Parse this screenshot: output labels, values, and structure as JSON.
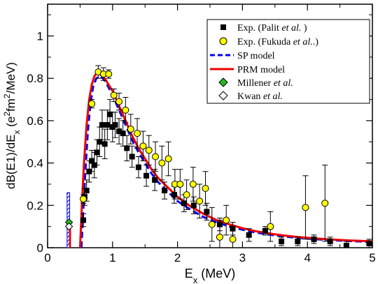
{
  "chart_data": {
    "type": "scatter",
    "title": "",
    "xlabel_main": "E",
    "xlabel_sub": "x",
    "xlabel_unit": " (MeV)",
    "ylabel_parts": {
      "a": "dB(E1)/dE",
      "a_sub": "x",
      "b": " (e",
      "b_sup": "2",
      "c": "fm",
      "c_sup": "2",
      "d": "/MeV)"
    },
    "xlim": [
      0,
      5
    ],
    "ylim": [
      0,
      1.15
    ],
    "xticks": [
      0,
      1,
      2,
      3,
      4,
      5
    ],
    "xtick_labels": [
      "0",
      "1",
      "2",
      "3",
      "4",
      "5"
    ],
    "yticks": [
      0,
      0.2,
      0.4,
      0.6,
      0.8,
      1
    ],
    "ytick_labels": [
      "0",
      "0.2",
      "0.4",
      "0.6",
      "0.8",
      "1"
    ],
    "legend_position": "top-right",
    "series": [
      {
        "name": "Exp. (Palit et al. )",
        "name_parts": [
          "Exp. (Palit ",
          "et al.",
          " )"
        ],
        "kind": "points",
        "marker": "square",
        "color": "#000000",
        "points": [
          [
            0.55,
            0.13,
            0.03
          ],
          [
            0.57,
            0.24,
            0.04
          ],
          [
            0.6,
            0.27,
            0.05
          ],
          [
            0.64,
            0.36,
            0.05
          ],
          [
            0.68,
            0.41,
            0.05
          ],
          [
            0.72,
            0.39,
            0.06
          ],
          [
            0.76,
            0.45,
            0.06
          ],
          [
            0.8,
            0.5,
            0.07
          ],
          [
            0.84,
            0.58,
            0.07
          ],
          [
            0.88,
            0.49,
            0.07
          ],
          [
            0.92,
            0.58,
            0.07
          ],
          [
            0.96,
            0.63,
            0.07
          ],
          [
            1.0,
            0.57,
            0.07
          ],
          [
            1.04,
            0.58,
            0.06
          ],
          [
            1.1,
            0.55,
            0.06
          ],
          [
            1.16,
            0.54,
            0.06
          ],
          [
            1.22,
            0.47,
            0.06
          ],
          [
            1.3,
            0.43,
            0.05
          ],
          [
            1.4,
            0.38,
            0.05
          ],
          [
            1.52,
            0.34,
            0.05
          ],
          [
            1.65,
            0.32,
            0.05
          ],
          [
            1.8,
            0.27,
            0.04
          ],
          [
            1.95,
            0.25,
            0.04
          ],
          [
            2.1,
            0.21,
            0.04
          ],
          [
            2.25,
            0.2,
            0.04
          ],
          [
            2.45,
            0.17,
            0.04
          ],
          [
            2.65,
            0.11,
            0.03
          ],
          [
            2.85,
            0.09,
            0.03
          ],
          [
            3.1,
            0.06,
            0.03
          ],
          [
            3.35,
            0.08,
            0.02
          ],
          [
            3.6,
            0.03,
            0.02
          ],
          [
            3.85,
            0.03,
            0.02
          ],
          [
            4.1,
            0.04,
            0.02
          ],
          [
            4.35,
            0.03,
            0.02
          ],
          [
            4.6,
            0.01,
            0.02
          ],
          [
            4.95,
            0.02,
            0.02
          ]
        ]
      },
      {
        "name": "Exp. (Fukuda et al..)",
        "name_parts": [
          "Exp. (Fukuda  ",
          "et al.",
          ".)"
        ],
        "kind": "points",
        "marker": "circle",
        "color": "#ffff00",
        "points": [
          [
            0.55,
            0.23,
            0.02
          ],
          [
            0.68,
            0.68,
            0.02
          ],
          [
            0.78,
            0.83,
            0.03
          ],
          [
            0.86,
            0.82,
            0.03
          ],
          [
            0.94,
            0.82,
            0.02
          ],
          [
            1.02,
            0.72,
            0.03
          ],
          [
            1.1,
            0.69,
            0.04
          ],
          [
            1.2,
            0.65,
            0.06
          ],
          [
            1.28,
            0.56,
            0.07
          ],
          [
            1.38,
            0.54,
            0.07
          ],
          [
            1.47,
            0.48,
            0.07
          ],
          [
            1.56,
            0.46,
            0.07
          ],
          [
            1.66,
            0.43,
            0.07
          ],
          [
            1.76,
            0.4,
            0.08
          ],
          [
            1.86,
            0.42,
            0.08
          ],
          [
            1.96,
            0.3,
            0.07
          ],
          [
            2.04,
            0.3,
            0.07
          ],
          [
            2.14,
            0.25,
            0.07
          ],
          [
            2.24,
            0.3,
            0.08
          ],
          [
            2.34,
            0.22,
            0.08
          ],
          [
            2.43,
            0.28,
            0.08
          ],
          [
            2.53,
            0.11,
            0.08
          ],
          [
            2.65,
            0.05,
            0.08
          ],
          [
            2.75,
            0.13,
            0.07
          ],
          [
            2.85,
            0.04,
            0.06
          ],
          [
            3.43,
            0.1,
            0.07
          ],
          [
            3.97,
            0.19,
            0.15
          ],
          [
            4.27,
            0.21,
            0.18
          ]
        ]
      },
      {
        "name": "SP model",
        "kind": "line",
        "dash": "dashed",
        "color": "#0000ee",
        "x": [
          0.52,
          0.55,
          0.58,
          0.62,
          0.66,
          0.7,
          0.75,
          0.8,
          0.85,
          0.9,
          1.0,
          1.1,
          1.2,
          1.3,
          1.4,
          1.5,
          1.6,
          1.7,
          1.8,
          1.9,
          2.0,
          2.2,
          2.4,
          2.6,
          2.8,
          3.0,
          3.2,
          3.5,
          3.8,
          4.0,
          4.3,
          4.6,
          5.0
        ],
        "y": [
          0.0,
          0.18,
          0.35,
          0.55,
          0.68,
          0.76,
          0.8,
          0.81,
          0.8,
          0.78,
          0.72,
          0.65,
          0.58,
          0.51,
          0.45,
          0.4,
          0.35,
          0.31,
          0.28,
          0.25,
          0.22,
          0.18,
          0.145,
          0.12,
          0.1,
          0.085,
          0.072,
          0.058,
          0.048,
          0.043,
          0.037,
          0.032,
          0.027
        ]
      },
      {
        "name": "PRM model",
        "kind": "line",
        "dash": "solid",
        "color": "#ee0000",
        "x": [
          0.5,
          0.53,
          0.56,
          0.6,
          0.64,
          0.68,
          0.72,
          0.76,
          0.8,
          0.85,
          0.9,
          1.0,
          1.1,
          1.2,
          1.3,
          1.4,
          1.5,
          1.6,
          1.7,
          1.8,
          1.9,
          2.0,
          2.2,
          2.4,
          2.6,
          2.8,
          3.0,
          3.2,
          3.5,
          3.8,
          4.0,
          4.3,
          4.6,
          5.0
        ],
        "y": [
          0.0,
          0.22,
          0.4,
          0.58,
          0.7,
          0.77,
          0.81,
          0.825,
          0.82,
          0.81,
          0.79,
          0.74,
          0.67,
          0.6,
          0.53,
          0.47,
          0.42,
          0.37,
          0.33,
          0.3,
          0.27,
          0.24,
          0.195,
          0.16,
          0.13,
          0.11,
          0.092,
          0.078,
          0.063,
          0.052,
          0.047,
          0.04,
          0.035,
          0.03
        ]
      },
      {
        "name": "Millener et al.",
        "name_parts": [
          "Millener ",
          "et al."
        ],
        "kind": "points",
        "marker": "diamond",
        "color": "#22bb22",
        "points": [
          [
            0.33,
            0.12,
            0
          ]
        ]
      },
      {
        "name": "Kwan et al.",
        "name_parts": [
          "Kwan ",
          "et al."
        ],
        "kind": "points",
        "marker": "diamond",
        "color": "#ffffff",
        "points": [
          [
            0.33,
            0.1,
            0
          ]
        ]
      }
    ],
    "extra_marks": {
      "hatched_bar": {
        "x0": 0.3,
        "x1": 0.34,
        "y": 0.26,
        "color": "#0000ee"
      },
      "red_spike": {
        "x0": 0.33,
        "x1": 0.36,
        "y": 0.1,
        "color": "#ee0000"
      }
    }
  }
}
